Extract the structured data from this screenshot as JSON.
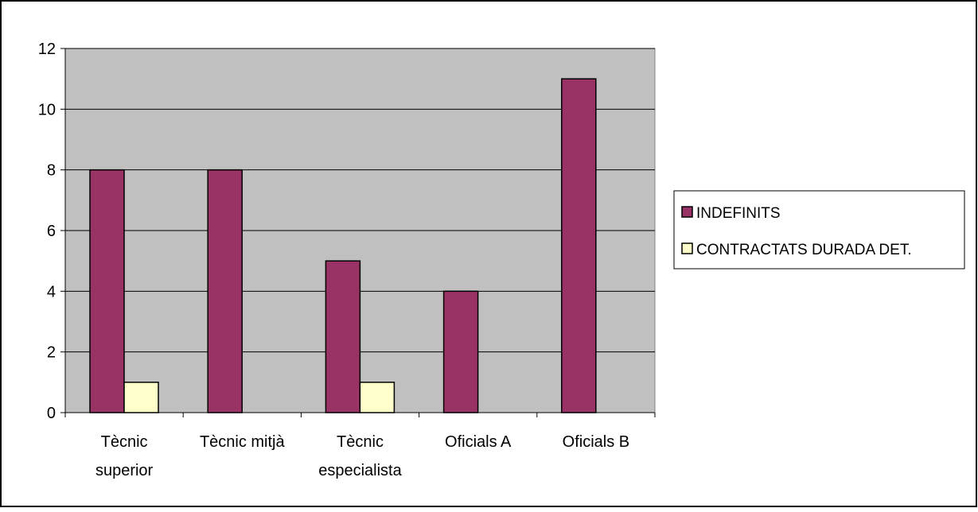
{
  "chart_data": {
    "type": "bar",
    "categories": [
      "Tècnic superior",
      "Tècnic mitjà",
      "Tècnic especialista",
      "Oficials A",
      "Oficials B"
    ],
    "category_label_lines": [
      [
        "Tècnic",
        "superior"
      ],
      [
        "Tècnic mitjà"
      ],
      [
        "Tècnic",
        "especialista"
      ],
      [
        "Oficials A"
      ],
      [
        "Oficials B"
      ]
    ],
    "series": [
      {
        "name": "INDEFINITS",
        "values": [
          8,
          8,
          5,
          4,
          11
        ]
      },
      {
        "name": "CONTRACTATS DURADA DET.",
        "values": [
          1,
          0,
          1,
          0,
          0
        ]
      }
    ],
    "ylim": [
      0,
      12
    ],
    "yticks": [
      0,
      2,
      4,
      6,
      8,
      10,
      12
    ],
    "grid": true,
    "legend_position": "right",
    "colors": {
      "plot_background": "#c0c0c0",
      "series": [
        "#993366",
        "#ffffcc"
      ],
      "border": "#000000"
    }
  }
}
